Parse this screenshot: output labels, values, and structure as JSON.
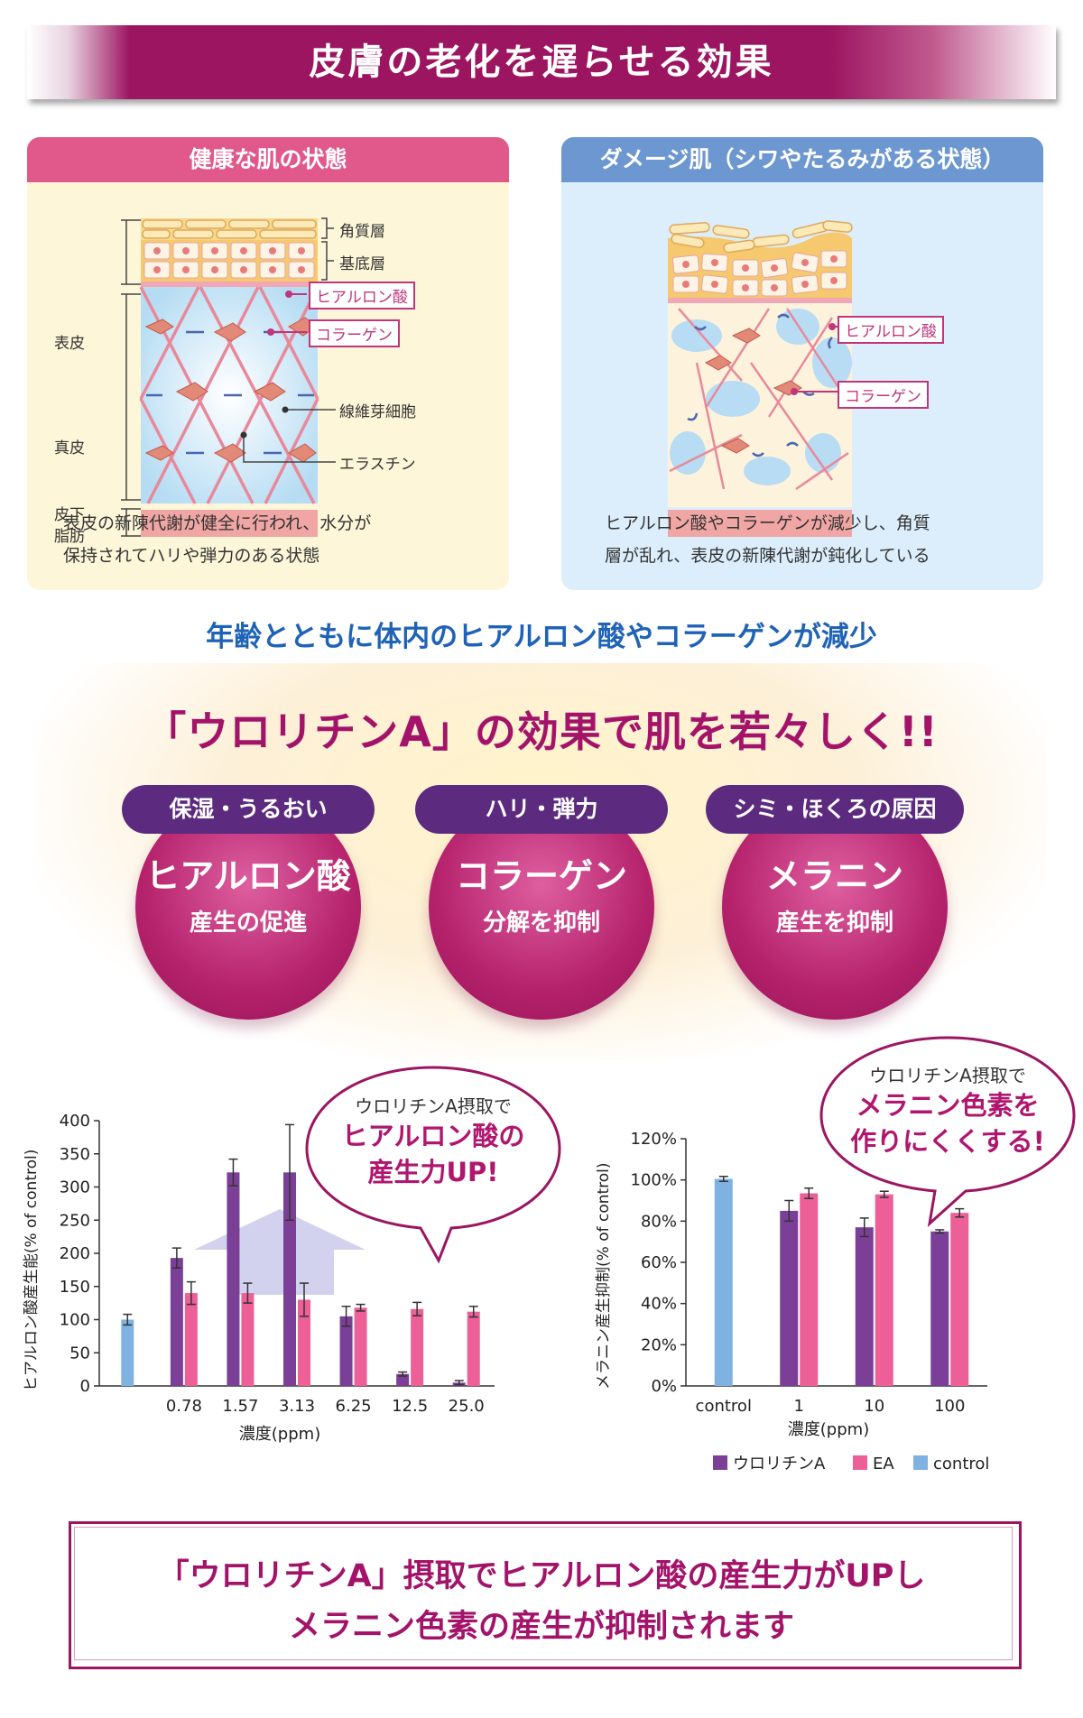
{
  "title": "皮膚の老化を遅らせる効果",
  "healthy": {
    "header": "健康な肌の状態",
    "labels": {
      "epidermis": "表皮",
      "dermis": "真皮",
      "subcutis_line1": "皮下",
      "subcutis_line2": "脂肪",
      "stratum_corneum": "角質層",
      "basal_layer": "基底層",
      "fibroblast": "線維芽細胞",
      "elastin": "エラスチン"
    },
    "tags": {
      "hyaluronic": "ヒアルロン酸",
      "collagen": "コラーゲン"
    },
    "desc_line1": "表皮の新陳代謝が健全に行われ、水分が",
    "desc_line2": "保持されてハリや弾力のある状態"
  },
  "damaged": {
    "header": "ダメージ肌（シワやたるみがある状態）",
    "tags": {
      "hyaluronic": "ヒアルロン酸",
      "collagen": "コラーゲン"
    },
    "desc_line1": "ヒアルロン酸やコラーゲンが減少し、角質",
    "desc_line2": "層が乱れ、表皮の新陳代謝が鈍化している"
  },
  "decline_message": "年齢とともに体内のヒアルロン酸やコラーゲンが減少",
  "headline": "「ウロリチンA」の効果で肌を若々しく!!",
  "effects": [
    {
      "pill": "保湿・うるおい",
      "main": "ヒアルロン酸",
      "sub": "産生の促進"
    },
    {
      "pill": "ハリ・弾力",
      "main": "コラーゲン",
      "sub": "分解を抑制"
    },
    {
      "pill": "シミ・ほくろの原因",
      "main": "メラニン",
      "sub": "産生を抑制"
    }
  ],
  "callout_left": {
    "line1": "ウロリチンA摂取で",
    "line2": "ヒアルロン酸の",
    "line3": "産生力UP!"
  },
  "callout_right": {
    "line1": "ウロリチンA摂取で",
    "line2": "メラニン色素を",
    "line3": "作りにくくする!"
  },
  "legend": [
    {
      "label": "ウロリチンA",
      "color": "#7b3f98"
    },
    {
      "label": "EA",
      "color": "#ec5f97"
    },
    {
      "label": "control",
      "color": "#7fb2e0"
    }
  ],
  "colors": {
    "urolithin": "#7b3f98",
    "ea": "#ec5f97",
    "control": "#7fb2e0",
    "brand": "#9c1561"
  },
  "chart_data": [
    {
      "type": "bar",
      "ylabel": "ヒアルロン酸産生能(% of control)",
      "xlabel": "濃度(ppm)",
      "ylim": [
        0,
        400
      ],
      "yticks": [
        "0",
        "50",
        "100",
        "150",
        "200",
        "250",
        "300",
        "350",
        "400"
      ],
      "categories": [
        "",
        "0.78",
        "1.57",
        "3.13",
        "6.25",
        "12.5",
        "25.0"
      ],
      "series": [
        {
          "name": "control",
          "values": [
            100,
            null,
            null,
            null,
            null,
            null,
            null
          ],
          "errors": [
            8,
            null,
            null,
            null,
            null,
            null,
            null
          ]
        },
        {
          "name": "ウロリチンA",
          "values": [
            null,
            193,
            322,
            322,
            105,
            18,
            5
          ],
          "errors": [
            null,
            15,
            20,
            72,
            15,
            3,
            3
          ]
        },
        {
          "name": "EA",
          "values": [
            null,
            140,
            140,
            130,
            118,
            116,
            112
          ],
          "errors": [
            null,
            17,
            15,
            25,
            5,
            10,
            8
          ]
        }
      ]
    },
    {
      "type": "bar",
      "ylabel": "メラニン産生抑制(% of control)",
      "xlabel": "濃度(ppm)",
      "ylim": [
        0,
        120
      ],
      "yticks": [
        "0%",
        "20%",
        "40%",
        "60%",
        "80%",
        "100%",
        "120%"
      ],
      "categories": [
        "control",
        "1",
        "10",
        "100"
      ],
      "series": [
        {
          "name": "control",
          "values": [
            100.5,
            null,
            null,
            null
          ],
          "errors": [
            1.2,
            null,
            null,
            null
          ]
        },
        {
          "name": "ウロリチンA",
          "values": [
            null,
            85,
            77,
            75
          ],
          "errors": [
            null,
            5,
            4.5,
            0.8
          ]
        },
        {
          "name": "EA",
          "values": [
            null,
            93.5,
            93,
            84
          ],
          "errors": [
            null,
            2.5,
            1.5,
            2
          ]
        }
      ]
    }
  ],
  "conclusion": {
    "line1": "「ウロリチンA」摂取でヒアルロン酸の産生力がUPし",
    "line2": "メラニン色素の産生が抑制されます"
  }
}
